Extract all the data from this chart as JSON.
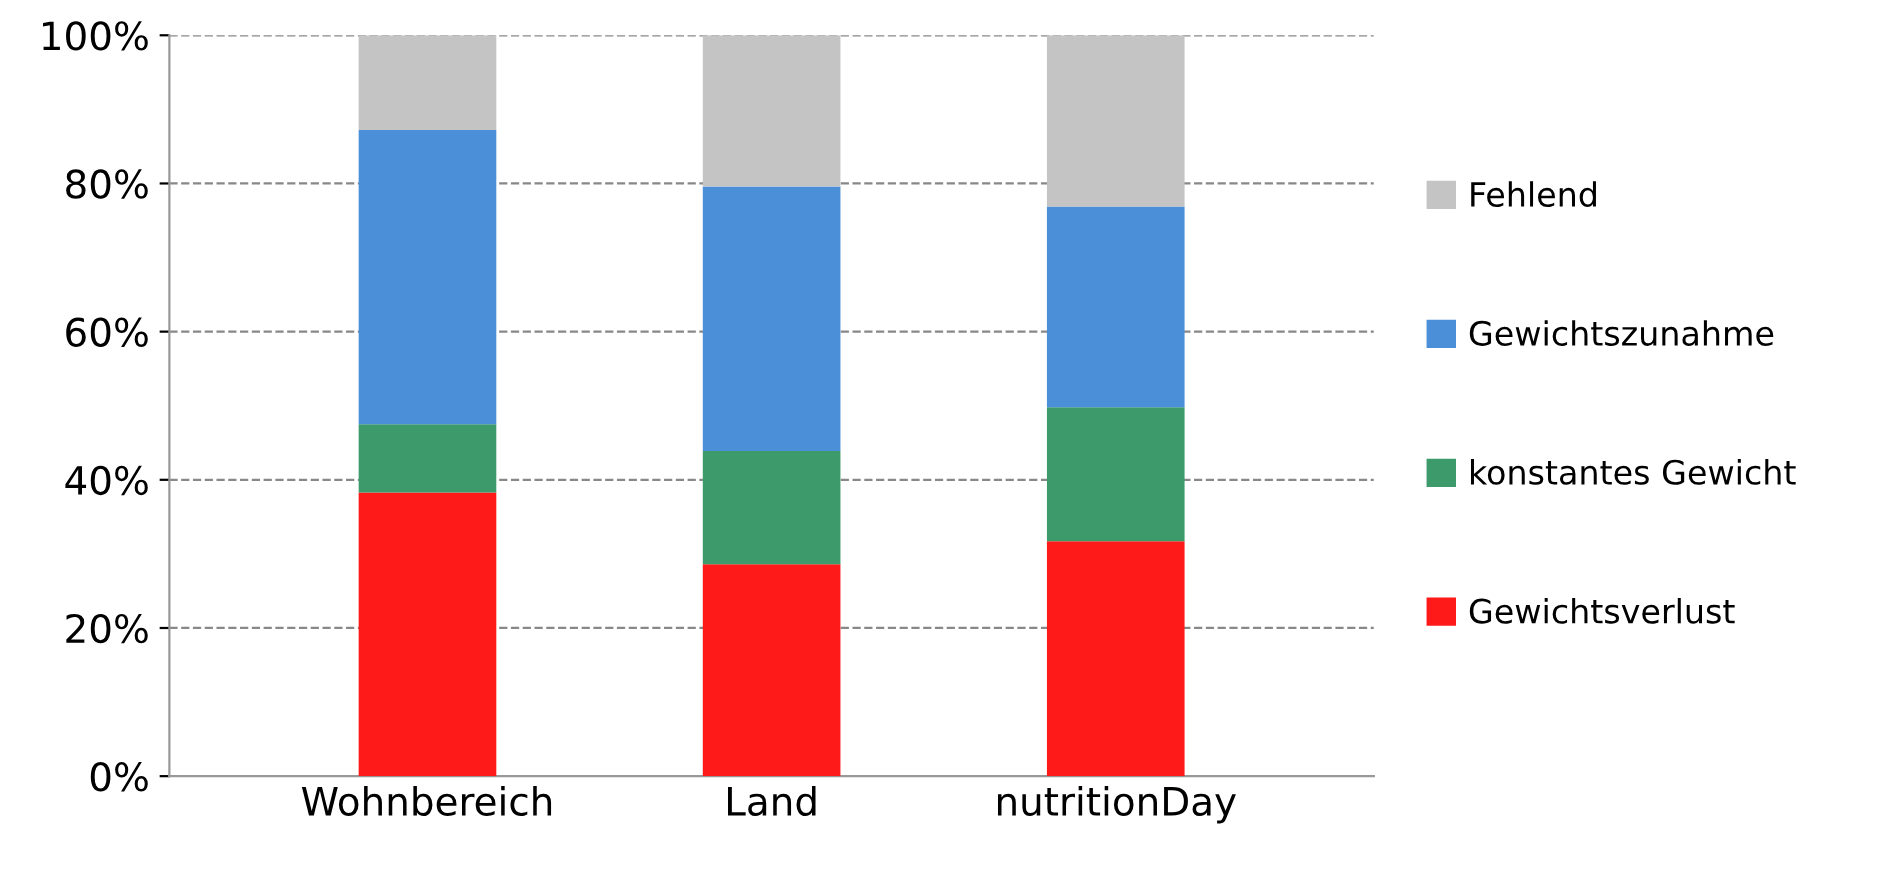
{
  "chart_data": {
    "type": "bar",
    "stacked": true,
    "categories": [
      "Wohnbereich",
      "Land",
      "nutritionDay"
    ],
    "series": [
      {
        "name": "Gewichtsverlust",
        "color": "#ff1a1a",
        "values": [
          38.3,
          28.6,
          31.7
        ]
      },
      {
        "name": "konstantes Gewicht",
        "color": "#3d9a6a",
        "values": [
          9.2,
          15.3,
          18.1
        ]
      },
      {
        "name": "Gewichtszunahme",
        "color": "#4a8fd8",
        "values": [
          39.7,
          35.7,
          27.1
        ]
      },
      {
        "name": "Fehlend",
        "color": "#c4c4c4",
        "values": [
          12.8,
          20.4,
          23.1
        ]
      }
    ],
    "ylim": [
      0,
      100
    ],
    "yticks": [
      {
        "value": 0,
        "label": "0%"
      },
      {
        "value": 20,
        "label": "20%"
      },
      {
        "value": 40,
        "label": "40%"
      },
      {
        "value": 60,
        "label": "60%"
      },
      {
        "value": 80,
        "label": "80%"
      },
      {
        "value": 100,
        "label": "100%"
      }
    ],
    "grid": "y",
    "legend": "right"
  }
}
